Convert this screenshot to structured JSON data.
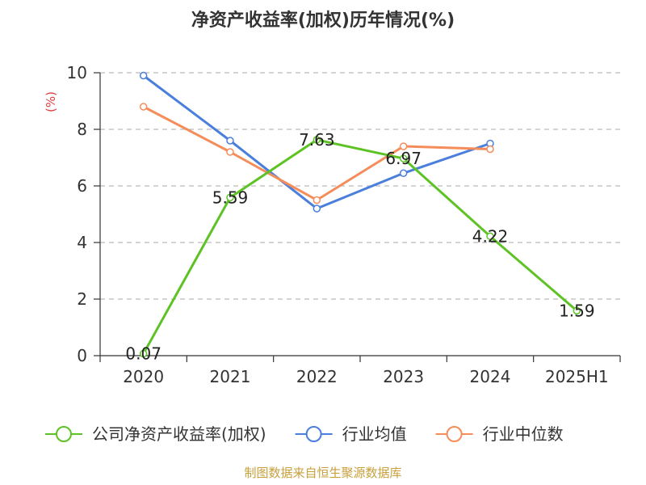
{
  "chart_data": {
    "type": "line",
    "title": "净资产收益率(加权)历年情况(%)",
    "ylabel": "(%)",
    "xlabel": "",
    "categories": [
      "2020",
      "2021",
      "2022",
      "2023",
      "2024",
      "2025H1"
    ],
    "ylim": [
      0,
      10
    ],
    "yticks": [
      0,
      2,
      4,
      6,
      8,
      10
    ],
    "grid": true,
    "legend_position": "bottom",
    "series": [
      {
        "name": "公司净资产收益率(加权)",
        "color": "#5dc325",
        "values": [
          0.07,
          5.59,
          7.63,
          6.97,
          4.22,
          1.59
        ],
        "labels": [
          "0.07",
          "5.59",
          "7.63",
          "6.97",
          "4.22",
          "1.59"
        ]
      },
      {
        "name": "行业均值",
        "color": "#4b7fdc",
        "values": [
          9.9,
          7.6,
          5.2,
          6.45,
          7.5,
          null
        ]
      },
      {
        "name": "行业中位数",
        "color": "#f58d5a",
        "values": [
          8.8,
          7.2,
          5.5,
          7.4,
          7.3,
          null
        ]
      }
    ],
    "source": "制图数据来自恒生聚源数据库"
  }
}
